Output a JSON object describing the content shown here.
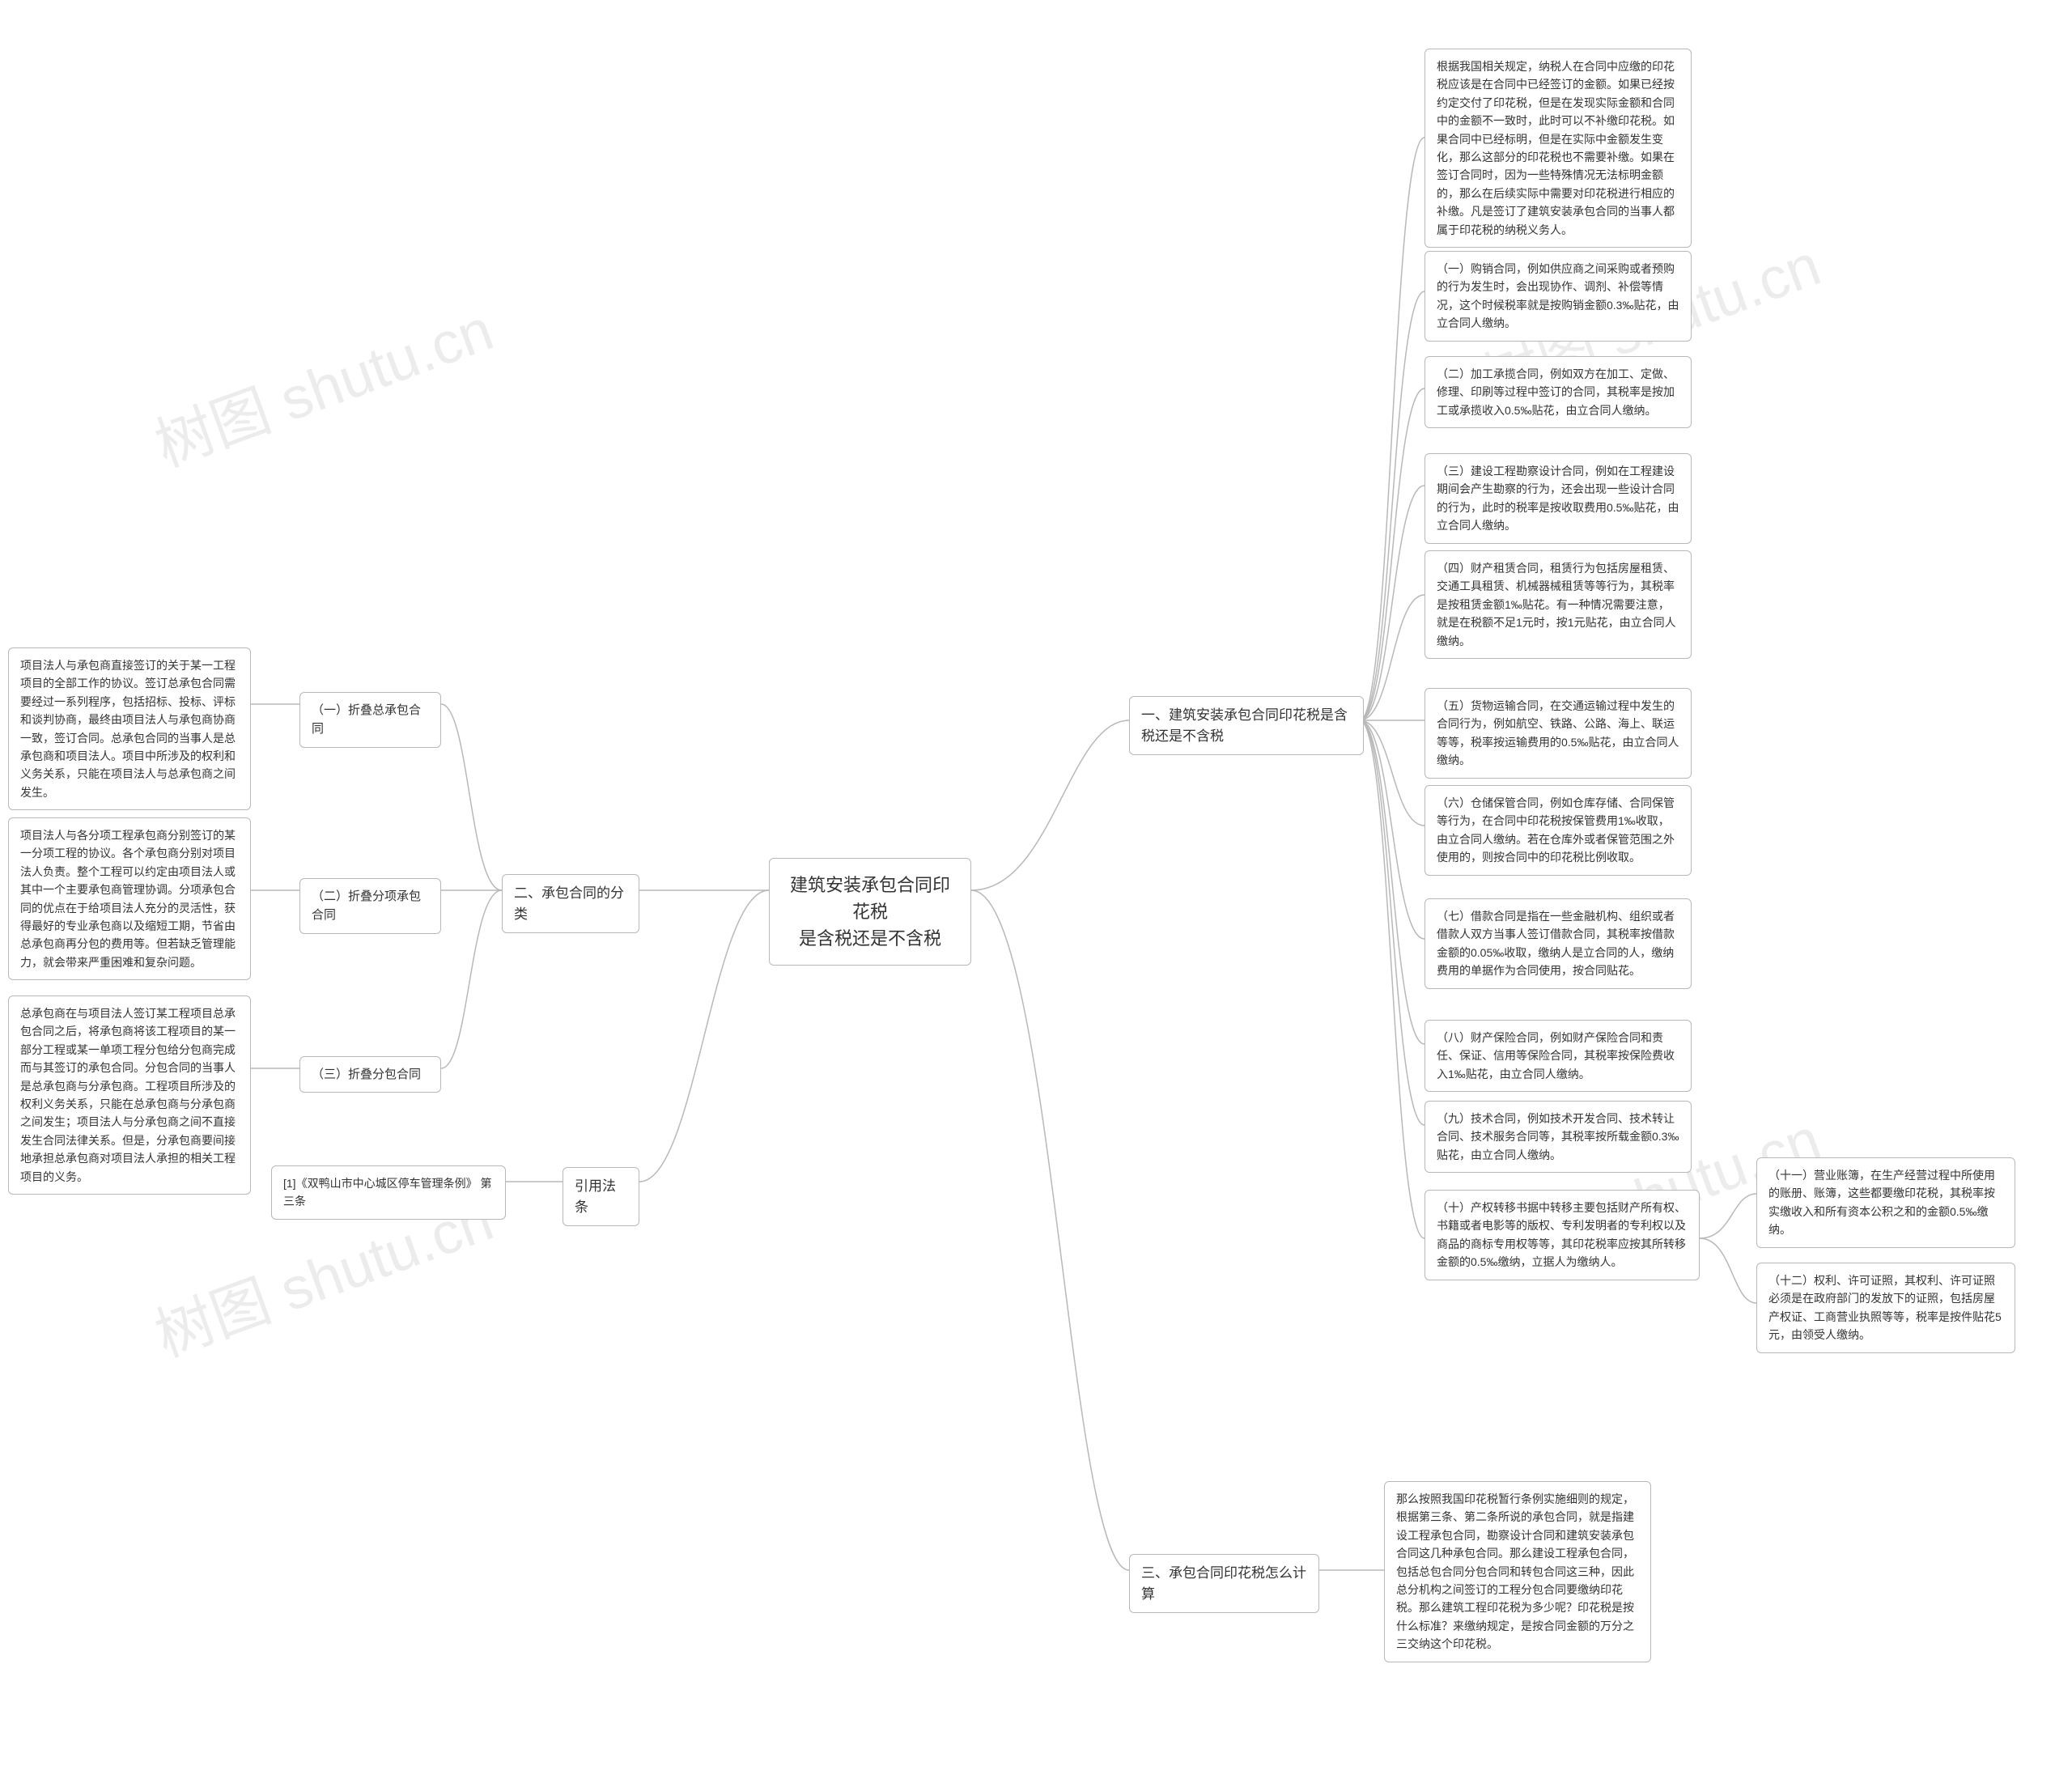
{
  "title": "建筑安装承包合同印花税是含税还是不含税",
  "type": "mindmap",
  "colors": {
    "background": "#ffffff",
    "node_bg": "#ffffff",
    "node_border": "#b8b8b8",
    "text": "#333333",
    "connector": "#b8b8b8",
    "watermark": "rgba(180,180,180,0.25)"
  },
  "typography": {
    "root_fontsize": 22,
    "level1_fontsize": 17,
    "leaf_fontsize": 14,
    "font_family": "Microsoft YaHei"
  },
  "watermarks": [
    "树图 shutu.cn",
    "树图 shutu.cn",
    "树图 shutu.cn",
    "树图 shutu.cn"
  ],
  "root": {
    "label": "建筑安装承包合同印花税\n是含税还是不含税"
  },
  "right_branches": [
    {
      "label": "一、建筑安装承包合同印花税是含\n税还是不含税",
      "children": [
        {
          "label": "根据我国相关规定，纳税人在合同中应缴的印花税应该是在合同中已经签订的金额。如果已经按约定交付了印花税，但是在发现实际金额和合同中的金额不一致时，此时可以不补缴印花税。如果合同中已经标明，但是在实际中金额发生变化，那么这部分的印花税也不需要补缴。如果在签订合同时，因为一些特殊情况无法标明金额的，那么在后续实际中需要对印花税进行相应的补缴。凡是签订了建筑安装承包合同的当事人都属于印花税的纳税义务人。"
        },
        {
          "label": "（一）购销合同，例如供应商之间采购或者预购的行为发生时，会出现协作、调剂、补偿等情况，这个时候税率就是按购销金额0.3‰贴花，由立合同人缴纳。"
        },
        {
          "label": "（二）加工承揽合同，例如双方在加工、定做、修理、印刷等过程中签订的合同，其税率是按加工或承揽收入0.5‰贴花，由立合同人缴纳。"
        },
        {
          "label": "（三）建设工程勘察设计合同，例如在工程建设期间会产生勘察的行为，还会出现一些设计合同的行为，此时的税率是按收取费用0.5‰贴花，由立合同人缴纳。"
        },
        {
          "label": "（四）财产租赁合同，租赁行为包括房屋租赁、交通工具租赁、机械器械租赁等等行为，其税率是按租赁金额1‰贴花。有一种情况需要注意，就是在税额不足1元时，按1元贴花，由立合同人缴纳。"
        },
        {
          "label": "（五）货物运输合同，在交通运输过程中发生的合同行为，例如航空、铁路、公路、海上、联运等等，税率按运输费用的0.5‰贴花，由立合同人缴纳。"
        },
        {
          "label": "（六）仓储保管合同，例如仓库存储、合同保管等行为，在合同中印花税按保管费用1‰收取，由立合同人缴纳。若在仓库外或者保管范围之外使用的，则按合同中的印花税比例收取。"
        },
        {
          "label": "（七）借款合同是指在一些金融机构、组织或者借款人双方当事人签订借款合同，其税率按借款金额的0.05‰收取，缴纳人是立合同的人，缴纳费用的单据作为合同使用，按合同贴花。"
        },
        {
          "label": "（八）财产保险合同，例如财产保险合同和责任、保证、信用等保险合同，其税率按保险费收入1‰贴花，由立合同人缴纳。"
        },
        {
          "label": "（九）技术合同，例如技术开发合同、技术转让合同、技术服务合同等，其税率按所载金额0.3‰贴花，由立合同人缴纳。"
        },
        {
          "label": "（十）产权转移书据中转移主要包括财产所有权、书籍或者电影等的版权、专利发明者的专利权以及商品的商标专用权等等，其印花税率应按其所转移金额的0.5‰缴纳，立据人为缴纳人。",
          "subchildren": [
            {
              "label": "（十一）营业账簿，在生产经营过程中所使用的账册、账簿，这些都要缴印花税，其税率按实缴收入和所有资本公积之和的金额0.5‰缴纳。"
            },
            {
              "label": "（十二）权利、许可证照，其权利、许可证照必须是在政府部门的发放下的证照，包括房屋产权证、工商营业执照等等，税率是按件贴花5元，由领受人缴纳。"
            }
          ]
        }
      ]
    },
    {
      "label": "三、承包合同印花税怎么计算",
      "children": [
        {
          "label": "那么按照我国印花税暂行条例实施细则的规定，根据第三条、第二条所说的承包合同，就是指建设工程承包合同，勘察设计合同和建筑安装承包合同这几种承包合同。那么建设工程承包合同，包括总包合同分包合同和转包合同这三种，因此总分机构之间签订的工程分包合同要缴纳印花税。那么建筑工程印花税为多少呢？印花税是按什么标准？来缴纳规定，是按合同金额的万分之三交纳这个印花税。"
        }
      ]
    }
  ],
  "left_branches": [
    {
      "label": "二、承包合同的分类",
      "children": [
        {
          "label": "（一）折叠总承包合同",
          "leaf": "项目法人与承包商直接签订的关于某一工程项目的全部工作的协议。签订总承包合同需要经过一系列程序，包括招标、投标、评标和谈判协商，最终由项目法人与承包商协商一致，签订合同。总承包合同的当事人是总承包商和项目法人。项目中所涉及的权利和义务关系，只能在项目法人与总承包商之间发生。"
        },
        {
          "label": "（二）折叠分项承包合同",
          "leaf": "项目法人与各分项工程承包商分别签订的某一分项工程的协议。各个承包商分别对项目法人负责。整个工程可以约定由项目法人或其中一个主要承包商管理协调。分项承包合同的优点在于给项目法人充分的灵活性，获得最好的专业承包商以及缩短工期，节省由总承包商再分包的费用等。但若缺乏管理能力，就会带来严重困难和复杂问题。"
        },
        {
          "label": "（三）折叠分包合同",
          "leaf": "总承包商在与项目法人签订某工程项目总承包合同之后，将承包商将该工程项目的某一部分工程或某一单项工程分包给分包商完成而与其签订的承包合同。分包合同的当事人是总承包商与分承包商。工程项目所涉及的权利义务关系，只能在总承包商与分承包商之间发生；项目法人与分承包商之间不直接发生合同法律关系。但是，分承包商要间接地承担总承包商对项目法人承担的相关工程项目的义务。"
        }
      ]
    },
    {
      "label": "引用法条",
      "children": [
        {
          "label": "[1]《双鸭山市中心城区停车管理条例》 第三条",
          "leaf": ""
        }
      ]
    }
  ]
}
